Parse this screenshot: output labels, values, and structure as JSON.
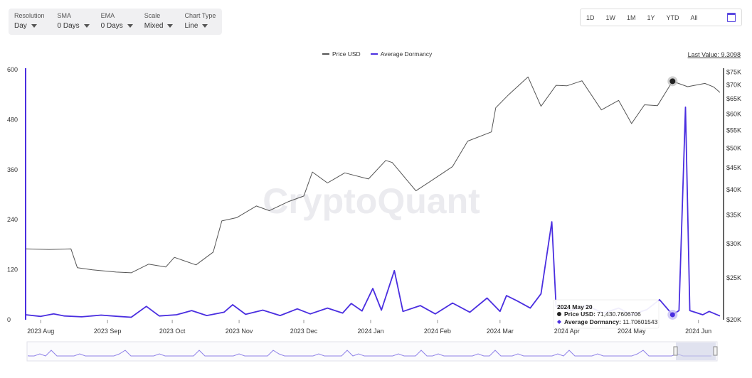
{
  "toolbar": {
    "resolution": {
      "label": "Resolution",
      "value": "Day"
    },
    "sma": {
      "label": "SMA",
      "value": "0 Days"
    },
    "ema": {
      "label": "EMA",
      "value": "0 Days"
    },
    "scale": {
      "label": "Scale",
      "value": "Mixed"
    },
    "chart_type": {
      "label": "Chart Type",
      "value": "Line"
    }
  },
  "range_buttons": [
    "1D",
    "1W",
    "1M",
    "1Y",
    "YTD",
    "All"
  ],
  "last_value": {
    "label": "Last Value: ",
    "value": "9.3098"
  },
  "watermark": "CryptoQuant",
  "tooltip": {
    "date": "2024 May 20",
    "price_label": "Price USD: ",
    "price_value": "71,430.7606706",
    "dormancy_label": "Average Dormancy: ",
    "dormancy_value": "11.70601543"
  },
  "colors": {
    "price": "#555555",
    "dormancy": "#4a2ee0",
    "navigator": "#8f82e8"
  },
  "chart_data": {
    "type": "line",
    "legend_position": "top-center",
    "grid": false,
    "x_range": [
      "2023-07-25",
      "2024-06-11"
    ],
    "x_ticks": [
      "2023 Aug",
      "2023 Sep",
      "2023 Oct",
      "2023 Nov",
      "2023 Dec",
      "2024 Jan",
      "2024 Feb",
      "2024 Mar",
      "2024 Apr",
      "2024 May",
      "2024 Jun"
    ],
    "y_left": {
      "min": 0,
      "max": 600,
      "ticks": [
        "600",
        "480",
        "360",
        "240",
        "120",
        "0"
      ]
    },
    "y_right": {
      "scale": "log",
      "min": 20000,
      "max": 76000,
      "ticks": [
        "$75K",
        "$70K",
        "$65K",
        "$60K",
        "$55K",
        "$50K",
        "$45K",
        "$40K",
        "$35K",
        "$30K",
        "$25K",
        "$20K"
      ]
    },
    "series": [
      {
        "name": "Price USD",
        "axis": "right",
        "points": [
          [
            "2023-07-25",
            29200
          ],
          [
            "2023-08-05",
            29100
          ],
          [
            "2023-08-15",
            29200
          ],
          [
            "2023-08-18",
            26400
          ],
          [
            "2023-08-25",
            26100
          ],
          [
            "2023-09-05",
            25800
          ],
          [
            "2023-09-12",
            25700
          ],
          [
            "2023-09-20",
            26900
          ],
          [
            "2023-09-28",
            26500
          ],
          [
            "2023-10-02",
            27900
          ],
          [
            "2023-10-12",
            26800
          ],
          [
            "2023-10-20",
            28700
          ],
          [
            "2023-10-24",
            33900
          ],
          [
            "2023-10-31",
            34500
          ],
          [
            "2023-11-09",
            36700
          ],
          [
            "2023-11-15",
            35800
          ],
          [
            "2023-11-24",
            37600
          ],
          [
            "2023-12-01",
            38700
          ],
          [
            "2023-12-05",
            44000
          ],
          [
            "2023-12-12",
            41500
          ],
          [
            "2023-12-20",
            43800
          ],
          [
            "2023-12-31",
            42400
          ],
          [
            "2024-01-08",
            46800
          ],
          [
            "2024-01-11",
            46300
          ],
          [
            "2024-01-22",
            39800
          ],
          [
            "2024-01-31",
            42600
          ],
          [
            "2024-02-08",
            45300
          ],
          [
            "2024-02-15",
            51900
          ],
          [
            "2024-02-26",
            54500
          ],
          [
            "2024-02-28",
            62000
          ],
          [
            "2024-03-05",
            66500
          ],
          [
            "2024-03-14",
            73100
          ],
          [
            "2024-03-20",
            62500
          ],
          [
            "2024-03-27",
            69900
          ],
          [
            "2024-04-01",
            69700
          ],
          [
            "2024-04-08",
            71600
          ],
          [
            "2024-04-17",
            61300
          ],
          [
            "2024-04-25",
            64500
          ],
          [
            "2024-05-01",
            57000
          ],
          [
            "2024-05-07",
            63000
          ],
          [
            "2024-05-13",
            62700
          ],
          [
            "2024-05-20",
            71430
          ],
          [
            "2024-05-27",
            69400
          ],
          [
            "2024-06-04",
            70600
          ],
          [
            "2024-06-08",
            69300
          ],
          [
            "2024-06-11",
            67300
          ]
        ]
      },
      {
        "name": "Average Dormancy",
        "axis": "left",
        "points": [
          [
            "2023-07-25",
            12
          ],
          [
            "2023-08-01",
            8
          ],
          [
            "2023-08-07",
            14
          ],
          [
            "2023-08-12",
            9
          ],
          [
            "2023-08-20",
            7
          ],
          [
            "2023-08-29",
            11
          ],
          [
            "2023-09-06",
            8
          ],
          [
            "2023-09-12",
            6
          ],
          [
            "2023-09-19",
            32
          ],
          [
            "2023-09-25",
            9
          ],
          [
            "2023-10-03",
            12
          ],
          [
            "2023-10-10",
            22
          ],
          [
            "2023-10-17",
            10
          ],
          [
            "2023-10-25",
            18
          ],
          [
            "2023-10-29",
            36
          ],
          [
            "2023-11-04",
            13
          ],
          [
            "2023-11-12",
            23
          ],
          [
            "2023-11-20",
            10
          ],
          [
            "2023-11-28",
            26
          ],
          [
            "2023-12-04",
            14
          ],
          [
            "2023-12-12",
            28
          ],
          [
            "2023-12-19",
            16
          ],
          [
            "2023-12-23",
            39
          ],
          [
            "2023-12-28",
            21
          ],
          [
            "2024-01-02",
            75
          ],
          [
            "2024-01-06",
            23
          ],
          [
            "2024-01-12",
            118
          ],
          [
            "2024-01-16",
            20
          ],
          [
            "2024-01-24",
            34
          ],
          [
            "2024-01-31",
            14
          ],
          [
            "2024-02-08",
            40
          ],
          [
            "2024-02-16",
            18
          ],
          [
            "2024-02-24",
            52
          ],
          [
            "2024-03-01",
            20
          ],
          [
            "2024-03-04",
            58
          ],
          [
            "2024-03-09",
            45
          ],
          [
            "2024-03-15",
            28
          ],
          [
            "2024-03-20",
            62
          ],
          [
            "2024-03-25",
            235
          ],
          [
            "2024-03-27",
            32
          ],
          [
            "2024-04-03",
            22
          ],
          [
            "2024-04-10",
            34
          ],
          [
            "2024-04-18",
            16
          ],
          [
            "2024-04-25",
            28
          ],
          [
            "2024-05-01",
            12
          ],
          [
            "2024-05-08",
            24
          ],
          [
            "2024-05-14",
            48
          ],
          [
            "2024-05-20",
            12
          ],
          [
            "2024-05-23",
            22
          ],
          [
            "2024-05-26",
            510
          ],
          [
            "2024-05-28",
            22
          ],
          [
            "2024-06-03",
            12
          ],
          [
            "2024-06-06",
            20
          ],
          [
            "2024-06-11",
            9
          ]
        ]
      }
    ]
  }
}
